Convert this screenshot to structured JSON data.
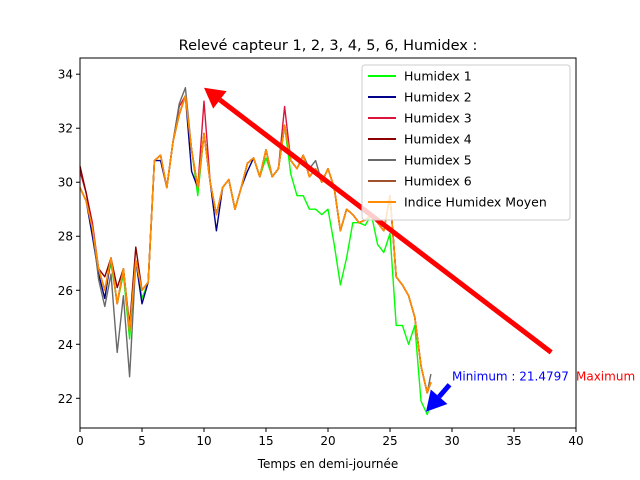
{
  "chart_data": {
    "type": "line",
    "title": "Relevé capteur 1, 2, 3, 4, 5, 6, Humidex :",
    "xlabel": "Temps en demi-journée",
    "ylabel": "",
    "xlim": [
      0,
      40
    ],
    "ylim": [
      20.9,
      34.6
    ],
    "xticks": [
      "0",
      "5",
      "10",
      "15",
      "20",
      "25",
      "30",
      "35",
      "40"
    ],
    "yticks": [
      "22",
      "24",
      "26",
      "28",
      "30",
      "32",
      "34"
    ],
    "grid": false,
    "legend_position": "top-right",
    "base_x": [
      0,
      0.5,
      1,
      1.5,
      2,
      2.5,
      3,
      3.5,
      4,
      4.5,
      5,
      5.5,
      6,
      6.5,
      7,
      7.5,
      8,
      8.5,
      9,
      9.5,
      10,
      10.5,
      11,
      11.5,
      12,
      12.5,
      13,
      13.5,
      14,
      14.5,
      15,
      15.5,
      16,
      16.5,
      17,
      17.5,
      18,
      18.5,
      19,
      19.5,
      20,
      20.5,
      21,
      21.5,
      22,
      22.5,
      23,
      23.5,
      24,
      24.5,
      25,
      25.5,
      26,
      26.5,
      27,
      27.5,
      28,
      28.3
    ],
    "series": [
      {
        "name": "Humidex 1",
        "color": "#00ff00",
        "offsets": [
          0,
          0,
          0,
          0,
          0,
          -0.2,
          0,
          -0.2,
          -0.3,
          0,
          -0.3,
          0,
          0,
          0,
          0,
          0,
          0,
          0,
          0,
          -0.3,
          0,
          0,
          0,
          0,
          0,
          0,
          0,
          0,
          0,
          0,
          -0.3,
          0,
          0,
          0,
          -0.5,
          -1,
          -1.5,
          -1.2,
          -1.5,
          -1.2,
          -1.5,
          -2.1,
          -2,
          -1.8,
          -0.3,
          0,
          -0.2,
          0,
          -0.8,
          -0.8,
          -1.4,
          -1.8,
          -1.5,
          -1.8,
          -0.3,
          -1.3,
          -0.8,
          -0.8
        ]
      },
      {
        "name": "Humidex 2",
        "color": "#00008b",
        "offsets": [
          0,
          0,
          -0.3,
          -0.2,
          -0.3,
          0,
          0,
          0,
          0,
          0,
          -0.5,
          0,
          0,
          -0.2,
          0,
          0,
          0,
          0,
          -0.8,
          0,
          0,
          0,
          -0.6,
          0,
          0,
          0,
          0,
          -0.3,
          0,
          0,
          0,
          0,
          0,
          0,
          0,
          0,
          0,
          0,
          0,
          0,
          0,
          0,
          0,
          0,
          0,
          0,
          0,
          0,
          0,
          0,
          0,
          0,
          0,
          0,
          0,
          0,
          0,
          0
        ]
      },
      {
        "name": "Humidex 3",
        "color": "#dc143c",
        "offsets": [
          0.6,
          0.3,
          0.2,
          0,
          0,
          0,
          0,
          0,
          0,
          0,
          0,
          0,
          0,
          0,
          0,
          0,
          0.3,
          0,
          0,
          0,
          1.2,
          0,
          0,
          0,
          0,
          0,
          0,
          0,
          0,
          0,
          0,
          0,
          0,
          0.7,
          0,
          0,
          0,
          0,
          0,
          0,
          0,
          0,
          0,
          0,
          0,
          0,
          0,
          0,
          0,
          0,
          0,
          0,
          0,
          0,
          0,
          0,
          0,
          0
        ]
      },
      {
        "name": "Humidex 4",
        "color": "#8b0000",
        "offsets": [
          0.8,
          0.3,
          0,
          0,
          0.5,
          0,
          0.6,
          0,
          0.2,
          0.5,
          0,
          0,
          0,
          0,
          0,
          0,
          0,
          0,
          0,
          0,
          0,
          0,
          0,
          0,
          0,
          0,
          0,
          0,
          0,
          0,
          0,
          0,
          0,
          0,
          0,
          0,
          0,
          0,
          0,
          0,
          0,
          0,
          0,
          0,
          0,
          0,
          0,
          0,
          0,
          0,
          0,
          0,
          0,
          0,
          0,
          0,
          0,
          0
        ]
      },
      {
        "name": "Humidex 5",
        "color": "#696969",
        "offsets": [
          0,
          0,
          0,
          -0.4,
          -0.6,
          -0.6,
          -1.8,
          -1,
          -1.7,
          0,
          0,
          0,
          0,
          0,
          0,
          0,
          0.4,
          0.3,
          0,
          0,
          0,
          0,
          0,
          0,
          0,
          0,
          0,
          0,
          0,
          0,
          0,
          0,
          0,
          0,
          0,
          0,
          0,
          0.3,
          0.3,
          0,
          0,
          0,
          0,
          0,
          0,
          0,
          0,
          0,
          0,
          0,
          0,
          0,
          0,
          0,
          0,
          0,
          0,
          0.3
        ]
      },
      {
        "name": "Humidex 6",
        "color": "#a0522d",
        "offsets": [
          0,
          0,
          0,
          0,
          0,
          0,
          0,
          0,
          0,
          0,
          0,
          0,
          0,
          0,
          0,
          0,
          0,
          0,
          0,
          0,
          0,
          0,
          0,
          0,
          0,
          0,
          0,
          0,
          0,
          0,
          0,
          0,
          0,
          0,
          0,
          0,
          0,
          0,
          0,
          0,
          0,
          0,
          0,
          0,
          0,
          0,
          0,
          0,
          0,
          0,
          0,
          0,
          0,
          0,
          0,
          0,
          0,
          0
        ]
      },
      {
        "name": "Indice Humidex Moyen",
        "color": "#ff8c00",
        "offsets": [
          0,
          0,
          0,
          0,
          0,
          0,
          0,
          0,
          0,
          0,
          0,
          0,
          0,
          0,
          0,
          0,
          0,
          0,
          0,
          0,
          0,
          0,
          0,
          0,
          0,
          0,
          0,
          0,
          0,
          0,
          0,
          0,
          0,
          0,
          0,
          0,
          0,
          0,
          0,
          0,
          0,
          0,
          0,
          0,
          0,
          0,
          0,
          0,
          0,
          0,
          0,
          0,
          0,
          0,
          0,
          0,
          0,
          0
        ]
      }
    ],
    "base_values": [
      29.8,
      29.3,
      28.3,
      26.8,
      26.0,
      27.2,
      25.5,
      26.8,
      24.5,
      27.1,
      26.0,
      26.3,
      30.8,
      31.0,
      29.8,
      31.5,
      32.5,
      33.2,
      31.2,
      29.8,
      31.8,
      30.0,
      28.8,
      29.8,
      30.1,
      29.0,
      29.8,
      30.7,
      30.9,
      30.2,
      31.2,
      30.2,
      30.5,
      32.1,
      30.8,
      30.5,
      31.0,
      30.2,
      30.5,
      30.0,
      30.5,
      29.8,
      28.2,
      29.0,
      28.8,
      28.5,
      28.6,
      28.8,
      28.5,
      28.2,
      29.5,
      26.5,
      26.2,
      25.8,
      25.0,
      23.2,
      22.2,
      22.6
    ],
    "annotations": [
      {
        "text": "Minimum : 21.4797",
        "x": 30,
        "y": 22.65,
        "color": "#0000ff"
      },
      {
        "text": "Maximum",
        "x": 40,
        "y": 22.65,
        "color": "#ff0000"
      }
    ],
    "arrows": [
      {
        "from_x": 38.0,
        "from_y": 23.7,
        "to_x": 10.0,
        "to_y": 33.5,
        "color": "#ff0000"
      },
      {
        "from_x": 29.8,
        "from_y": 22.5,
        "to_x": 27.9,
        "to_y": 21.5,
        "color": "#0000ff"
      }
    ]
  }
}
